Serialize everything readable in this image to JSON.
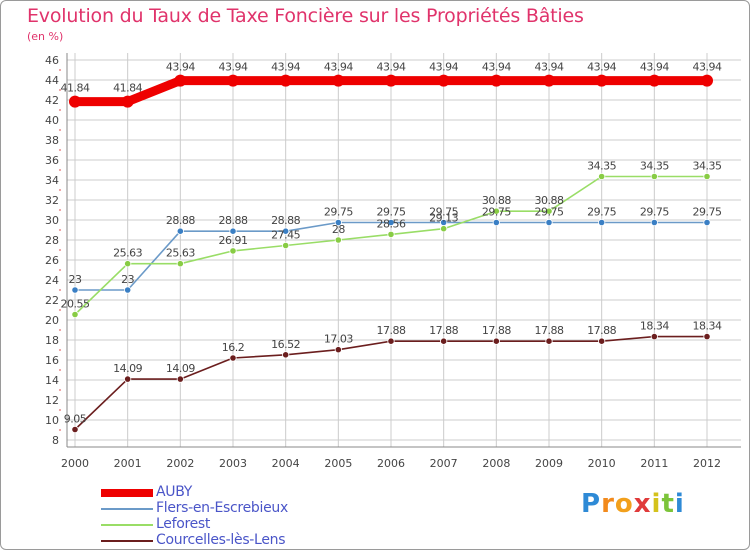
{
  "chart_data": {
    "type": "line",
    "title": "Evolution du Taux de Taxe Foncière sur les Propriétés Bâties",
    "unit_label": "(en %)",
    "xlabel": "",
    "ylabel": "",
    "ylim": [
      8,
      46
    ],
    "yticks": [
      "8",
      "10",
      "12",
      "14",
      "16",
      "18",
      "20",
      "22",
      "24",
      "26",
      "28",
      "30",
      "32",
      "34",
      "36",
      "38",
      "40",
      "42",
      "44",
      "46"
    ],
    "categories": [
      "2000",
      "2001",
      "2002",
      "2003",
      "2004",
      "2005",
      "2006",
      "2007",
      "2008",
      "2009",
      "2010",
      "2011",
      "2012"
    ],
    "series": [
      {
        "name": "AUBY",
        "color": "#ee0000",
        "marker_color": "#ee0000",
        "thick": true,
        "values": [
          41.84,
          41.84,
          43.94,
          43.94,
          43.94,
          43.94,
          43.94,
          43.94,
          43.94,
          43.94,
          43.94,
          43.94,
          43.94
        ],
        "labels": [
          "41.84",
          "41.84",
          "43.94",
          "43.94",
          "43.94",
          "43.94",
          "43.94",
          "43.94",
          "43.94",
          "43.94",
          "43.94",
          "43.94",
          "43.94"
        ]
      },
      {
        "name": "Flers-en-Escrebieux",
        "color": "#6b9ac8",
        "marker_color": "#3a7fc4",
        "thick": false,
        "values": [
          23,
          23,
          28.88,
          28.88,
          28.88,
          29.75,
          29.75,
          29.75,
          29.75,
          29.75,
          29.75,
          29.75,
          29.75
        ],
        "labels": [
          "23",
          "23",
          "28.88",
          "28.88",
          "28.88",
          "29.75",
          "29.75",
          "29.75",
          "29.75",
          "29.75",
          "29.75",
          "29.75",
          "29.75"
        ]
      },
      {
        "name": "Leforest",
        "color": "#99dd66",
        "marker_color": "#88cc44",
        "thick": false,
        "values": [
          20.55,
          25.63,
          25.63,
          26.91,
          27.45,
          28,
          28.56,
          29.13,
          30.88,
          30.88,
          34.35,
          34.35,
          34.35
        ],
        "labels": [
          "20.55",
          "25.63",
          "25.63",
          "26.91",
          "27.45",
          "28",
          "28.56",
          "29.13",
          "30.88",
          "30.88",
          "34.35",
          "34.35",
          "34.35"
        ]
      },
      {
        "name": "Courcelles-lès-Lens",
        "color": "#6b1e1e",
        "marker_color": "#6b1e1e",
        "thick": false,
        "values": [
          9.05,
          14.09,
          14.09,
          16.2,
          16.52,
          17.03,
          17.88,
          17.88,
          17.88,
          17.88,
          17.88,
          18.34,
          18.34
        ],
        "labels": [
          "9.05",
          "14.09",
          "14.09",
          "16.2",
          "16.52",
          "17.03",
          "17.88",
          "17.88",
          "17.88",
          "17.88",
          "17.88",
          "18.34",
          "18.34"
        ]
      }
    ],
    "legend_position": "bottom-left",
    "grid": true
  },
  "brand": {
    "letters": [
      "P",
      "r",
      "o",
      "x",
      "i",
      "t",
      "i"
    ],
    "colors": [
      "#2e8ad6",
      "#f28a1c",
      "#f2a01c",
      "#e03a3a",
      "#d4c21c",
      "#7cc43a",
      "#2e8ad6"
    ]
  }
}
